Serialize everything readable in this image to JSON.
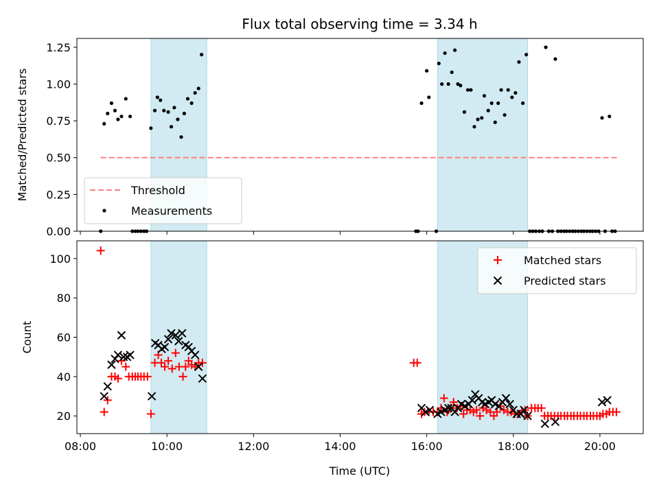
{
  "figure": {
    "title": "Flux total observing time = 3.34 h",
    "xlabel": "Time (UTC)",
    "x_ticks": [
      {
        "label": "08:00",
        "value": 8
      },
      {
        "label": "10:00",
        "value": 10
      },
      {
        "label": "12:00",
        "value": 12
      },
      {
        "label": "14:00",
        "value": 14
      },
      {
        "label": "16:00",
        "value": 16
      },
      {
        "label": "18:00",
        "value": 18
      },
      {
        "label": "20:00",
        "value": 20
      }
    ],
    "xlim_hours": [
      7.92,
      21.0
    ],
    "shaded_intervals_hours": [
      [
        9.63,
        10.92
      ],
      [
        16.25,
        18.33
      ]
    ],
    "shade_color": "#add8e6"
  },
  "chart_data": [
    {
      "type": "scatter",
      "ylabel": "Matched/Predicted stars",
      "ylim": [
        0,
        1.31
      ],
      "y_ticks": [
        {
          "label": "0.00",
          "value": 0
        },
        {
          "label": "0.25",
          "value": 0.25
        },
        {
          "label": "0.50",
          "value": 0.5
        },
        {
          "label": "0.75",
          "value": 0.75
        },
        {
          "label": "1.00",
          "value": 1.0
        },
        {
          "label": "1.25",
          "value": 1.25
        }
      ],
      "legend": {
        "position": "lower left",
        "threshold_label": "Threshold",
        "measurements_label": "Measurements"
      },
      "threshold": {
        "y": 0.5,
        "x_range": [
          8.47,
          20.4
        ],
        "color": "#ff7f7f",
        "style": "dashed"
      },
      "measurements": {
        "color": "#000000",
        "points": [
          [
            8.47,
            0.0
          ],
          [
            8.55,
            0.73
          ],
          [
            8.63,
            0.8
          ],
          [
            8.72,
            0.87
          ],
          [
            8.8,
            0.82
          ],
          [
            8.87,
            0.76
          ],
          [
            8.95,
            0.78
          ],
          [
            9.05,
            0.9
          ],
          [
            9.15,
            0.78
          ],
          [
            9.2,
            0.0
          ],
          [
            9.27,
            0.0
          ],
          [
            9.33,
            0.0
          ],
          [
            9.4,
            0.0
          ],
          [
            9.47,
            0.0
          ],
          [
            9.53,
            0.0
          ],
          [
            9.63,
            0.7
          ],
          [
            9.72,
            0.82
          ],
          [
            9.78,
            0.91
          ],
          [
            9.85,
            0.89
          ],
          [
            9.93,
            0.82
          ],
          [
            10.03,
            0.81
          ],
          [
            10.1,
            0.71
          ],
          [
            10.17,
            0.84
          ],
          [
            10.25,
            0.76
          ],
          [
            10.33,
            0.64
          ],
          [
            10.4,
            0.8
          ],
          [
            10.48,
            0.9
          ],
          [
            10.57,
            0.87
          ],
          [
            10.65,
            0.94
          ],
          [
            10.73,
            0.97
          ],
          [
            10.8,
            1.2
          ],
          [
            15.75,
            0.0
          ],
          [
            15.8,
            0.0
          ],
          [
            15.88,
            0.87
          ],
          [
            16.0,
            1.09
          ],
          [
            16.05,
            0.91
          ],
          [
            16.22,
            0.0
          ],
          [
            16.28,
            1.14
          ],
          [
            16.35,
            1.0
          ],
          [
            16.42,
            1.21
          ],
          [
            16.5,
            1.0
          ],
          [
            16.58,
            1.08
          ],
          [
            16.65,
            1.23
          ],
          [
            16.72,
            1.0
          ],
          [
            16.78,
            0.99
          ],
          [
            16.87,
            0.81
          ],
          [
            16.95,
            0.96
          ],
          [
            17.02,
            0.96
          ],
          [
            17.1,
            0.71
          ],
          [
            17.18,
            0.76
          ],
          [
            17.27,
            0.77
          ],
          [
            17.33,
            0.92
          ],
          [
            17.42,
            0.82
          ],
          [
            17.5,
            0.87
          ],
          [
            17.58,
            0.74
          ],
          [
            17.65,
            0.87
          ],
          [
            17.72,
            0.96
          ],
          [
            17.8,
            0.79
          ],
          [
            17.88,
            0.96
          ],
          [
            17.97,
            0.91
          ],
          [
            18.05,
            0.94
          ],
          [
            18.13,
            1.15
          ],
          [
            18.22,
            0.87
          ],
          [
            18.3,
            1.2
          ],
          [
            18.38,
            0.0
          ],
          [
            18.45,
            0.0
          ],
          [
            18.52,
            0.0
          ],
          [
            18.6,
            0.0
          ],
          [
            18.67,
            0.0
          ],
          [
            18.75,
            1.25
          ],
          [
            18.82,
            0.0
          ],
          [
            18.9,
            0.0
          ],
          [
            18.97,
            1.17
          ],
          [
            19.03,
            0.0
          ],
          [
            19.1,
            0.0
          ],
          [
            19.17,
            0.0
          ],
          [
            19.23,
            0.0
          ],
          [
            19.3,
            0.0
          ],
          [
            19.37,
            0.0
          ],
          [
            19.43,
            0.0
          ],
          [
            19.5,
            0.0
          ],
          [
            19.57,
            0.0
          ],
          [
            19.63,
            0.0
          ],
          [
            19.7,
            0.0
          ],
          [
            19.77,
            0.0
          ],
          [
            19.83,
            0.0
          ],
          [
            19.9,
            0.0
          ],
          [
            19.97,
            0.0
          ],
          [
            20.05,
            0.77
          ],
          [
            20.12,
            0.0
          ],
          [
            20.22,
            0.78
          ],
          [
            20.28,
            0.0
          ],
          [
            20.35,
            0.0
          ]
        ]
      }
    },
    {
      "type": "scatter",
      "ylabel": "Count",
      "ylim": [
        11,
        109
      ],
      "y_ticks": [
        {
          "label": "20",
          "value": 20
        },
        {
          "label": "40",
          "value": 40
        },
        {
          "label": "60",
          "value": 60
        },
        {
          "label": "80",
          "value": 80
        },
        {
          "label": "100",
          "value": 100
        }
      ],
      "legend": {
        "position": "upper right"
      },
      "series": [
        {
          "name": "Matched stars",
          "marker": "plus",
          "color": "#ff0000",
          "points": [
            [
              8.47,
              104
            ],
            [
              8.55,
              22
            ],
            [
              8.63,
              28
            ],
            [
              8.72,
              40
            ],
            [
              8.8,
              40
            ],
            [
              8.87,
              39
            ],
            [
              8.95,
              48
            ],
            [
              9.05,
              45
            ],
            [
              9.12,
              40
            ],
            [
              9.2,
              40
            ],
            [
              9.27,
              40
            ],
            [
              9.33,
              40
            ],
            [
              9.4,
              40
            ],
            [
              9.47,
              40
            ],
            [
              9.55,
              40
            ],
            [
              9.63,
              21
            ],
            [
              9.72,
              47
            ],
            [
              9.8,
              51
            ],
            [
              9.87,
              47
            ],
            [
              9.95,
              45
            ],
            [
              10.03,
              48
            ],
            [
              10.12,
              44
            ],
            [
              10.2,
              52
            ],
            [
              10.28,
              45
            ],
            [
              10.37,
              40
            ],
            [
              10.43,
              45
            ],
            [
              10.5,
              48
            ],
            [
              10.57,
              46
            ],
            [
              10.65,
              45
            ],
            [
              10.73,
              47
            ],
            [
              10.82,
              47
            ],
            [
              15.7,
              47
            ],
            [
              15.78,
              47
            ],
            [
              15.88,
              21
            ],
            [
              15.95,
              22
            ],
            [
              16.05,
              22
            ],
            [
              16.15,
              22
            ],
            [
              16.25,
              22
            ],
            [
              16.33,
              24
            ],
            [
              16.4,
              29
            ],
            [
              16.47,
              22
            ],
            [
              16.55,
              24
            ],
            [
              16.62,
              27
            ],
            [
              16.7,
              24
            ],
            [
              16.78,
              25
            ],
            [
              16.85,
              21
            ],
            [
              16.93,
              23
            ],
            [
              17.0,
              23
            ],
            [
              17.08,
              22
            ],
            [
              17.15,
              23
            ],
            [
              17.23,
              20
            ],
            [
              17.3,
              24
            ],
            [
              17.38,
              23
            ],
            [
              17.47,
              22
            ],
            [
              17.55,
              20
            ],
            [
              17.62,
              22
            ],
            [
              17.7,
              25
            ],
            [
              17.78,
              23
            ],
            [
              17.87,
              22
            ],
            [
              17.95,
              22
            ],
            [
              18.03,
              21
            ],
            [
              18.12,
              21
            ],
            [
              18.2,
              22
            ],
            [
              18.27,
              23
            ],
            [
              18.33,
              20
            ],
            [
              18.42,
              24
            ],
            [
              18.5,
              24
            ],
            [
              18.57,
              24
            ],
            [
              18.65,
              24
            ],
            [
              18.72,
              20
            ],
            [
              18.8,
              20
            ],
            [
              18.87,
              20
            ],
            [
              18.95,
              20
            ],
            [
              19.03,
              20
            ],
            [
              19.1,
              20
            ],
            [
              19.18,
              20
            ],
            [
              19.25,
              20
            ],
            [
              19.33,
              20
            ],
            [
              19.4,
              20
            ],
            [
              19.48,
              20
            ],
            [
              19.55,
              20
            ],
            [
              19.63,
              20
            ],
            [
              19.7,
              20
            ],
            [
              19.78,
              20
            ],
            [
              19.85,
              20
            ],
            [
              19.93,
              20
            ],
            [
              20.0,
              20
            ],
            [
              20.07,
              21
            ],
            [
              20.15,
              21
            ],
            [
              20.22,
              22
            ],
            [
              20.3,
              22
            ],
            [
              20.38,
              22
            ]
          ]
        },
        {
          "name": "Predicted stars",
          "marker": "x",
          "color": "#000000",
          "points": [
            [
              8.55,
              30
            ],
            [
              8.63,
              35
            ],
            [
              8.72,
              46
            ],
            [
              8.8,
              49
            ],
            [
              8.87,
              51
            ],
            [
              8.95,
              61
            ],
            [
              9.0,
              50
            ],
            [
              9.08,
              50
            ],
            [
              9.15,
              51
            ],
            [
              9.65,
              30
            ],
            [
              9.73,
              57
            ],
            [
              9.8,
              56
            ],
            [
              9.88,
              54
            ],
            [
              9.95,
              55
            ],
            [
              10.03,
              59
            ],
            [
              10.1,
              62
            ],
            [
              10.2,
              61
            ],
            [
              10.27,
              58
            ],
            [
              10.35,
              62
            ],
            [
              10.43,
              56
            ],
            [
              10.5,
              55
            ],
            [
              10.57,
              53
            ],
            [
              10.65,
              51
            ],
            [
              10.73,
              45
            ],
            [
              10.82,
              39
            ],
            [
              15.88,
              24
            ],
            [
              15.97,
              22
            ],
            [
              16.07,
              23
            ],
            [
              16.25,
              21
            ],
            [
              16.33,
              22
            ],
            [
              16.42,
              23
            ],
            [
              16.5,
              24
            ],
            [
              16.57,
              24
            ],
            [
              16.65,
              22
            ],
            [
              16.72,
              24
            ],
            [
              16.8,
              26
            ],
            [
              16.88,
              25
            ],
            [
              16.97,
              26
            ],
            [
              17.05,
              28
            ],
            [
              17.12,
              31
            ],
            [
              17.2,
              29
            ],
            [
              17.28,
              27
            ],
            [
              17.35,
              26
            ],
            [
              17.43,
              27
            ],
            [
              17.5,
              28
            ],
            [
              17.58,
              26
            ],
            [
              17.67,
              25
            ],
            [
              17.75,
              27
            ],
            [
              17.83,
              29
            ],
            [
              17.92,
              26
            ],
            [
              18.0,
              23
            ],
            [
              18.08,
              21
            ],
            [
              18.17,
              21
            ],
            [
              18.25,
              23
            ],
            [
              18.33,
              20
            ],
            [
              18.73,
              16
            ],
            [
              18.97,
              17
            ],
            [
              20.05,
              27
            ],
            [
              20.17,
              28
            ]
          ]
        }
      ]
    }
  ]
}
